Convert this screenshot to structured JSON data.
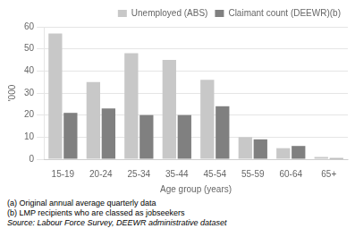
{
  "chart_data": {
    "type": "bar",
    "categories": [
      "15-19",
      "20-24",
      "25-34",
      "35-44",
      "45-54",
      "55-59",
      "60-64",
      "65+"
    ],
    "series": [
      {
        "name": "Unemployed (ABS)",
        "color": "#c8c8c8",
        "values": [
          57,
          35,
          48,
          45,
          36,
          10,
          5,
          1
        ]
      },
      {
        "name": "Claimant count (DEEWR)(b)",
        "color": "#808080",
        "values": [
          21,
          23,
          20,
          20,
          24,
          9,
          6,
          0.5
        ]
      }
    ],
    "xlabel": "Age group (years)",
    "ylabel": "'000",
    "ylim": [
      0,
      60
    ],
    "yticks": [
      0,
      10,
      20,
      30,
      40,
      50,
      60
    ],
    "grid": true,
    "legend": "upper right",
    "annotations": [
      "(a) Original annual average quarterly data",
      "(b) LMP recipients who are classed as jobseekers",
      "Source: Labour Force Survey, DEEWR administrative dataset"
    ]
  }
}
